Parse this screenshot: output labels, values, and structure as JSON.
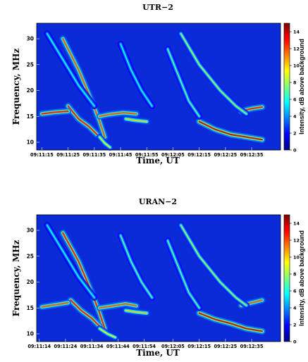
{
  "colors": {
    "colormap": [
      "#00007f",
      "#0000ff",
      "#007fff",
      "#00ffff",
      "#7fff7f",
      "#ffff00",
      "#ff7f00",
      "#ff0000",
      "#7f0000"
    ]
  },
  "chart_data": [
    {
      "type": "heatmap",
      "title": "UTR−2",
      "xlabel": "Time, UT",
      "ylabel": "Frequency, MHz",
      "colorbar_label": "Intensity, dB above background",
      "x_ticks": [
        "09:11:15",
        "09:11:25",
        "09:11:35",
        "09:11:45",
        "09:11:55",
        "09:12:05",
        "09:12:15",
        "09:12:25",
        "09:12:35"
      ],
      "x_range_sec": [
        0,
        93
      ],
      "x_tick_sec": [
        2,
        12,
        22,
        32,
        42,
        52,
        62,
        72,
        82
      ],
      "y_ticks": [
        10,
        15,
        20,
        25,
        30
      ],
      "ylim": [
        8.5,
        33
      ],
      "colorbar_ticks": [
        0,
        2,
        4,
        6,
        8,
        10,
        12,
        14
      ],
      "colorbar_range": [
        0,
        15
      ],
      "features": [
        {
          "kind": "drift",
          "t": [
            10,
            16,
            21,
            24,
            26
          ],
          "f": [
            30,
            24,
            18,
            14,
            11
          ],
          "peak": 12
        },
        {
          "kind": "drift",
          "t": [
            12,
            16,
            20,
            23
          ],
          "f": [
            17,
            14.5,
            13,
            11.5
          ],
          "peak": 13
        },
        {
          "kind": "drift",
          "t": [
            2,
            7,
            12
          ],
          "f": [
            15.5,
            15.8,
            16
          ],
          "peak": 13
        },
        {
          "kind": "drift",
          "t": [
            24,
            28,
            33,
            38
          ],
          "f": [
            15,
            15.4,
            15.7,
            15.5
          ],
          "peak": 12
        },
        {
          "kind": "drift",
          "t": [
            34,
            38,
            42
          ],
          "f": [
            14.5,
            14.2,
            14
          ],
          "peak": 10
        },
        {
          "kind": "drift",
          "t": [
            62,
            68,
            74,
            80,
            86
          ],
          "f": [
            14,
            12.5,
            11.5,
            11,
            10.5
          ],
          "peak": 14
        },
        {
          "kind": "drift",
          "t": [
            78,
            82,
            86
          ],
          "f": [
            16,
            16.5,
            16.8
          ],
          "peak": 13
        },
        {
          "kind": "drift",
          "t": [
            55,
            62,
            70,
            76,
            80
          ],
          "f": [
            31,
            25,
            20,
            17,
            15.5
          ],
          "peak": 8
        },
        {
          "kind": "drift",
          "t": [
            50,
            54,
            58,
            62
          ],
          "f": [
            28,
            23,
            18,
            15
          ],
          "peak": 7
        },
        {
          "kind": "drift",
          "t": [
            4,
            10,
            16,
            22
          ],
          "f": [
            31,
            26,
            21,
            17
          ],
          "peak": 6
        },
        {
          "kind": "drift",
          "t": [
            32,
            36,
            40,
            44
          ],
          "f": [
            29,
            24,
            20,
            17
          ],
          "peak": 6
        },
        {
          "kind": "drift",
          "t": [
            24,
            26,
            28
          ],
          "f": [
            11,
            9.8,
            9
          ],
          "peak": 9
        }
      ]
    },
    {
      "type": "heatmap",
      "title": "URAN−2",
      "xlabel": "Time, UT",
      "ylabel": "Frequency, MHz",
      "colorbar_label": "Intensity, dB above background",
      "x_ticks": [
        "09:11:14",
        "09:11:24",
        "09:11:34",
        "09:11:44",
        "09:11:54",
        "09:12:05",
        "09:12:15",
        "09:12:25",
        "09:12:35"
      ],
      "x_range_sec": [
        0,
        93
      ],
      "x_tick_sec": [
        1,
        11,
        21,
        31,
        41,
        52,
        62,
        72,
        82
      ],
      "y_ticks": [
        10,
        15,
        20,
        25,
        30
      ],
      "ylim": [
        8.5,
        33
      ],
      "colorbar_ticks": [
        0,
        2,
        4,
        6,
        8,
        10,
        12,
        14
      ],
      "colorbar_range": [
        0,
        15
      ],
      "features": [
        {
          "kind": "drift",
          "t": [
            10,
            16,
            21,
            24,
            26
          ],
          "f": [
            29.5,
            24,
            18,
            14,
            11
          ],
          "peak": 13
        },
        {
          "kind": "drift",
          "t": [
            13,
            17,
            21,
            24
          ],
          "f": [
            16.5,
            14.5,
            13,
            11.5
          ],
          "peak": 13
        },
        {
          "kind": "drift",
          "t": [
            2,
            7,
            12
          ],
          "f": [
            15.2,
            15.6,
            16
          ],
          "peak": 12
        },
        {
          "kind": "drift",
          "t": [
            24,
            29,
            34,
            38
          ],
          "f": [
            15,
            15.4,
            15.8,
            15.4
          ],
          "peak": 12
        },
        {
          "kind": "drift",
          "t": [
            34,
            38,
            42
          ],
          "f": [
            14.5,
            14.2,
            14
          ],
          "peak": 10
        },
        {
          "kind": "drift",
          "t": [
            62,
            68,
            74,
            80,
            86
          ],
          "f": [
            14,
            12.8,
            12,
            11,
            10.5
          ],
          "peak": 14
        },
        {
          "kind": "drift",
          "t": [
            78,
            82,
            86
          ],
          "f": [
            15.5,
            16,
            16.5
          ],
          "peak": 12
        },
        {
          "kind": "drift",
          "t": [
            55,
            62,
            70,
            76,
            80
          ],
          "f": [
            31,
            25,
            20,
            17,
            15.5
          ],
          "peak": 8
        },
        {
          "kind": "drift",
          "t": [
            50,
            54,
            58,
            62
          ],
          "f": [
            28,
            23,
            18,
            15
          ],
          "peak": 7
        },
        {
          "kind": "drift",
          "t": [
            4,
            10,
            16,
            22
          ],
          "f": [
            31,
            26,
            21,
            17
          ],
          "peak": 6
        },
        {
          "kind": "drift",
          "t": [
            32,
            36,
            40,
            44
          ],
          "f": [
            29,
            24,
            20,
            17
          ],
          "peak": 7
        },
        {
          "kind": "drift",
          "t": [
            24,
            27,
            30
          ],
          "f": [
            11,
            10,
            9.3
          ],
          "peak": 9
        }
      ]
    }
  ]
}
